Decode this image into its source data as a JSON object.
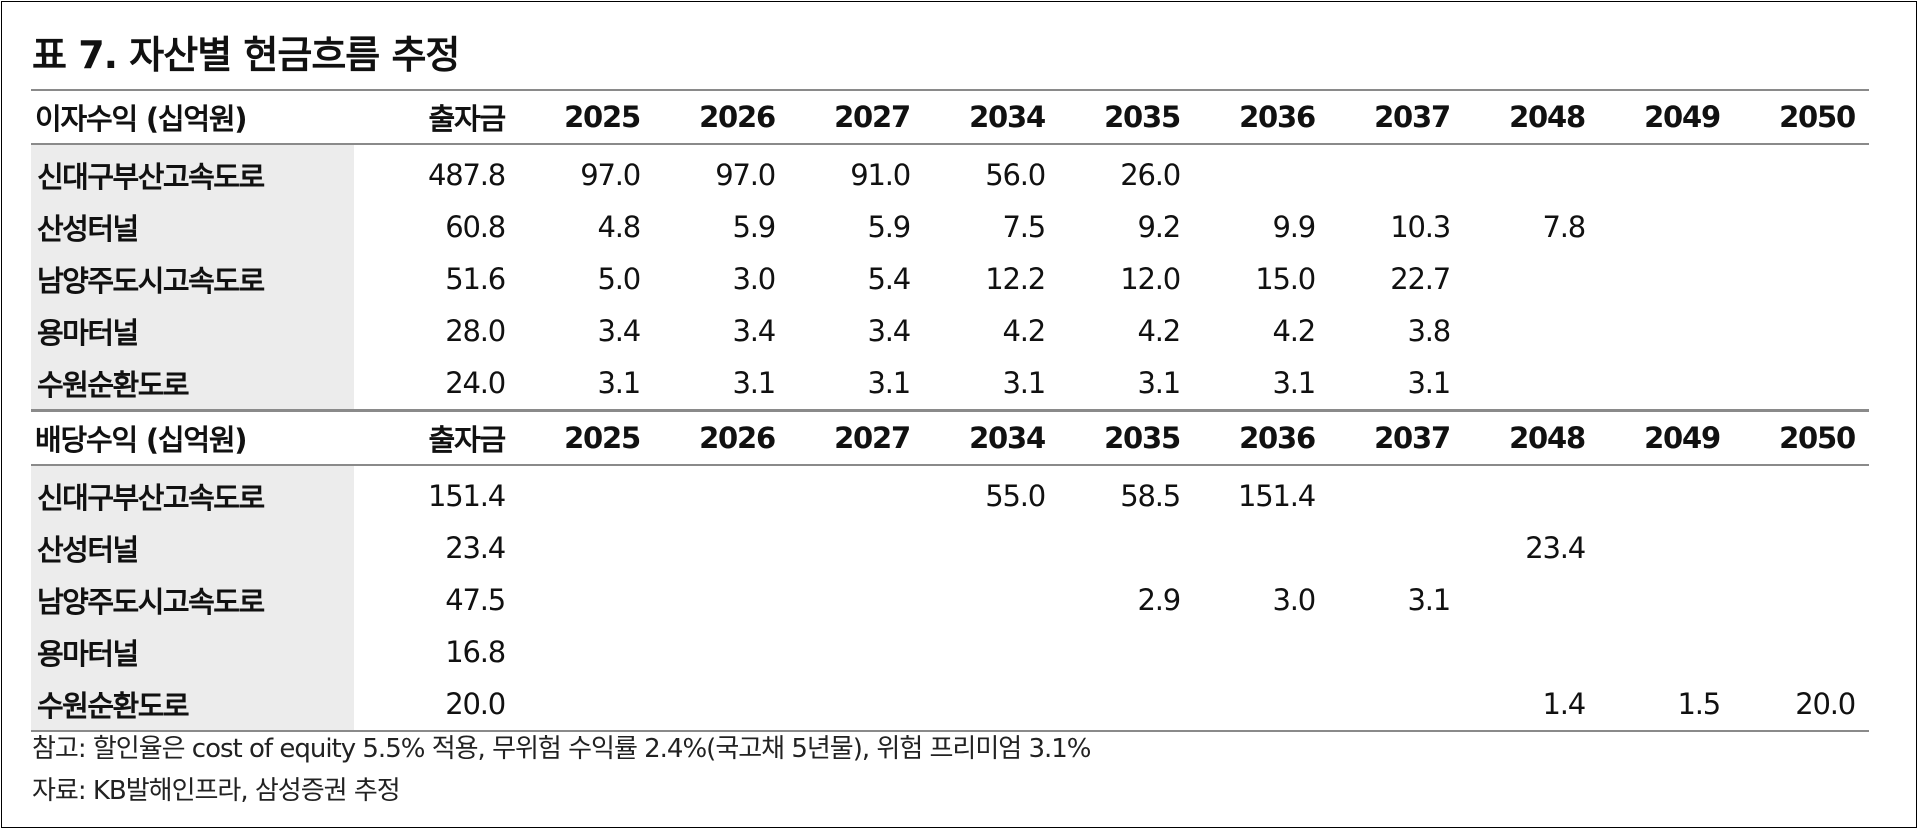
{
  "title": "표 7. 자산별 현금흐름 추정",
  "interest_section": {
    "header": {
      "label": "이자수익 (십억원)",
      "investment": "출자금",
      "years": [
        "2025",
        "2026",
        "2027",
        "2034",
        "2035",
        "2036",
        "2037",
        "2048",
        "2049",
        "2050"
      ]
    },
    "rows": [
      {
        "name": "신대구부산고속도로",
        "investment": "487.8",
        "values": [
          "97.0",
          "97.0",
          "91.0",
          "56.0",
          "26.0",
          "",
          "",
          "",
          "",
          ""
        ]
      },
      {
        "name": "산성터널",
        "investment": "60.8",
        "values": [
          "4.8",
          "5.9",
          "5.9",
          "7.5",
          "9.2",
          "9.9",
          "10.3",
          "7.8",
          "",
          ""
        ]
      },
      {
        "name": "남양주도시고속도로",
        "investment": "51.6",
        "values": [
          "5.0",
          "3.0",
          "5.4",
          "12.2",
          "12.0",
          "15.0",
          "22.7",
          "",
          "",
          ""
        ]
      },
      {
        "name": "용마터널",
        "investment": "28.0",
        "values": [
          "3.4",
          "3.4",
          "3.4",
          "4.2",
          "4.2",
          "4.2",
          "3.8",
          "",
          "",
          ""
        ]
      },
      {
        "name": "수원순환도로",
        "investment": "24.0",
        "values": [
          "3.1",
          "3.1",
          "3.1",
          "3.1",
          "3.1",
          "3.1",
          "3.1",
          "",
          "",
          ""
        ]
      }
    ]
  },
  "dividend_section": {
    "header": {
      "label": "배당수익 (십억원)",
      "investment": "출자금",
      "years": [
        "2025",
        "2026",
        "2027",
        "2034",
        "2035",
        "2036",
        "2037",
        "2048",
        "2049",
        "2050"
      ]
    },
    "rows": [
      {
        "name": "신대구부산고속도로",
        "investment": "151.4",
        "values": [
          "",
          "",
          "",
          "55.0",
          "58.5",
          "151.4",
          "",
          "",
          "",
          ""
        ]
      },
      {
        "name": "산성터널",
        "investment": "23.4",
        "values": [
          "",
          "",
          "",
          "",
          "",
          "",
          "",
          "23.4",
          "",
          ""
        ]
      },
      {
        "name": "남양주도시고속도로",
        "investment": "47.5",
        "values": [
          "",
          "",
          "",
          "",
          "2.9",
          "3.0",
          "3.1",
          "",
          "",
          ""
        ]
      },
      {
        "name": "용마터널",
        "investment": "16.8",
        "values": [
          "",
          "",
          "",
          "",
          "",
          "",
          "",
          "",
          "",
          ""
        ]
      },
      {
        "name": "수원순환도로",
        "investment": "20.0",
        "values": [
          "",
          "",
          "",
          "",
          "",
          "",
          "",
          "1.4",
          "1.5",
          "20.0"
        ]
      }
    ]
  },
  "notes": {
    "note": "참고: 할인율은 cost of equity 5.5% 적용, 무위험 수익률 2.4%(국고채 5년물), 위험 프리미엄 3.1%",
    "source": "자료: KB발해인프라, 삼성증권 추정"
  }
}
